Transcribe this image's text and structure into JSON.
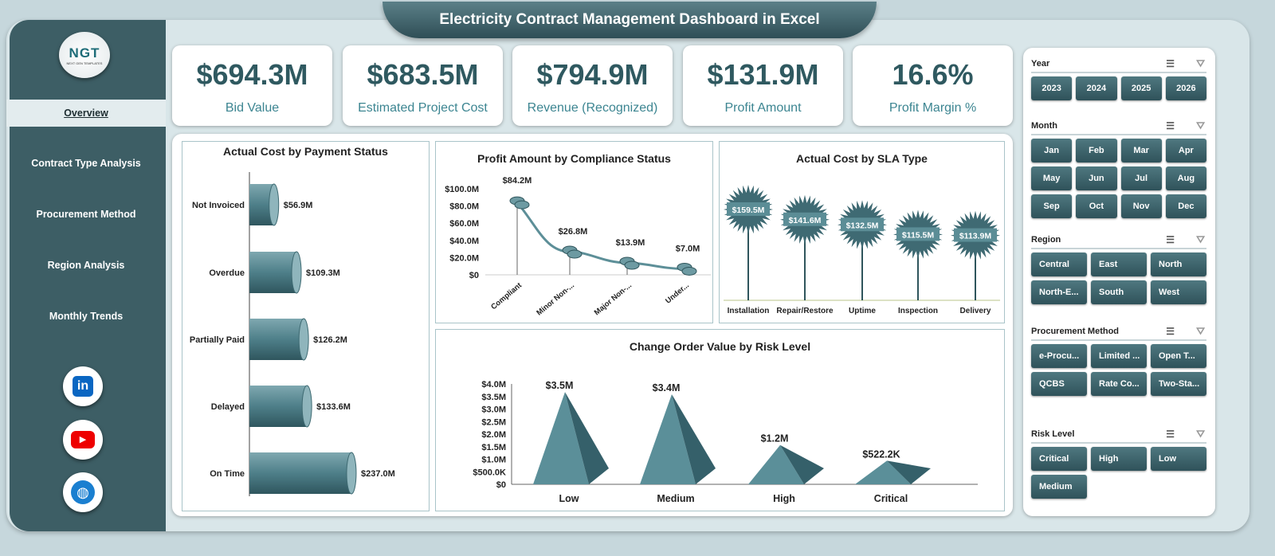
{
  "title": "Electricity Contract Management Dashboard  in Excel",
  "logo": {
    "text": "NGT",
    "subtitle": "NEXT GEN TEMPLATES"
  },
  "nav": [
    "Overview",
    "Contract Type Analysis",
    "Procurement Method",
    "Region Analysis",
    "Monthly Trends"
  ],
  "social": [
    "linkedin-icon",
    "youtube-icon",
    "globe-icon"
  ],
  "kpis": [
    {
      "value": "$694.3M",
      "label": "Bid Value"
    },
    {
      "value": "$683.5M",
      "label": "Estimated Project Cost"
    },
    {
      "value": "$794.9M",
      "label": "Revenue (Recognized)"
    },
    {
      "value": "$131.9M",
      "label": "Profit Amount"
    },
    {
      "value": "16.6%",
      "label": "Profit Margin %"
    }
  ],
  "colors": {
    "accent": "#3d5e65",
    "chart": "#5a8c96"
  },
  "chart_data": [
    {
      "type": "bar",
      "orientation": "horizontal",
      "title": "Actual Cost by Payment Status",
      "categories": [
        "Not Invoiced",
        "Overdue",
        "Partially Paid",
        "Delayed",
        "On Time"
      ],
      "values": [
        56.9,
        109.3,
        126.2,
        133.6,
        237.0
      ],
      "labels": [
        "$56.9M",
        "$109.3M",
        "$126.2M",
        "$133.6M",
        "$237.0M"
      ]
    },
    {
      "type": "line",
      "title": "Profit Amount by Compliance Status",
      "categories": [
        "Compliant",
        "Minor Non-...",
        "Major Non-...",
        "Under..."
      ],
      "values": [
        84.2,
        26.8,
        13.9,
        7.0
      ],
      "labels": [
        "$84.2M",
        "$26.8M",
        "$13.9M",
        "$7.0M"
      ],
      "ylim": [
        0,
        100
      ],
      "yticks": [
        "$0",
        "$20.0M",
        "$40.0M",
        "$60.0M",
        "$80.0M",
        "$100.0M"
      ]
    },
    {
      "type": "bar",
      "title": "Actual Cost by SLA Type",
      "categories": [
        "Installation",
        "Repair/Restore",
        "Uptime",
        "Inspection",
        "Delivery"
      ],
      "values": [
        159.5,
        141.6,
        132.5,
        115.5,
        113.9
      ],
      "labels": [
        "$159.5M",
        "$141.6M",
        "$132.5M",
        "$115.5M",
        "$113.9M"
      ]
    },
    {
      "type": "bar",
      "title": "Change Order Value by Risk Level",
      "categories": [
        "Low",
        "Medium",
        "High",
        "Critical"
      ],
      "values": [
        3.5,
        3.4,
        1.2,
        0.5222
      ],
      "labels": [
        "$3.5M",
        "$3.4M",
        "$1.2M",
        "$522.2K"
      ],
      "ylim": [
        0,
        4
      ],
      "yticks": [
        "$0",
        "$500.0K",
        "$1.0M",
        "$1.5M",
        "$2.0M",
        "$2.5M",
        "$3.0M",
        "$3.5M",
        "$4.0M"
      ]
    }
  ],
  "slicers": [
    {
      "title": "Year",
      "cols": 4,
      "items": [
        "2023",
        "2024",
        "2025",
        "2026"
      ]
    },
    {
      "title": "Month",
      "cols": 4,
      "items": [
        "Jan",
        "Feb",
        "Mar",
        "Apr",
        "May",
        "Jun",
        "Jul",
        "Aug",
        "Sep",
        "Oct",
        "Nov",
        "Dec"
      ]
    },
    {
      "title": "Region",
      "cols": 3,
      "items": [
        "Central",
        "East",
        "North",
        "North-E...",
        "South",
        "West"
      ]
    },
    {
      "title": "Procurement Method",
      "cols": 3,
      "items": [
        "e-Procu...",
        "Limited ...",
        "Open T...",
        "QCBS",
        "Rate Co...",
        "Two-Sta..."
      ]
    },
    {
      "title": "Risk Level",
      "cols": 3,
      "items": [
        "Critical",
        "High",
        "Low",
        "Medium"
      ]
    }
  ]
}
